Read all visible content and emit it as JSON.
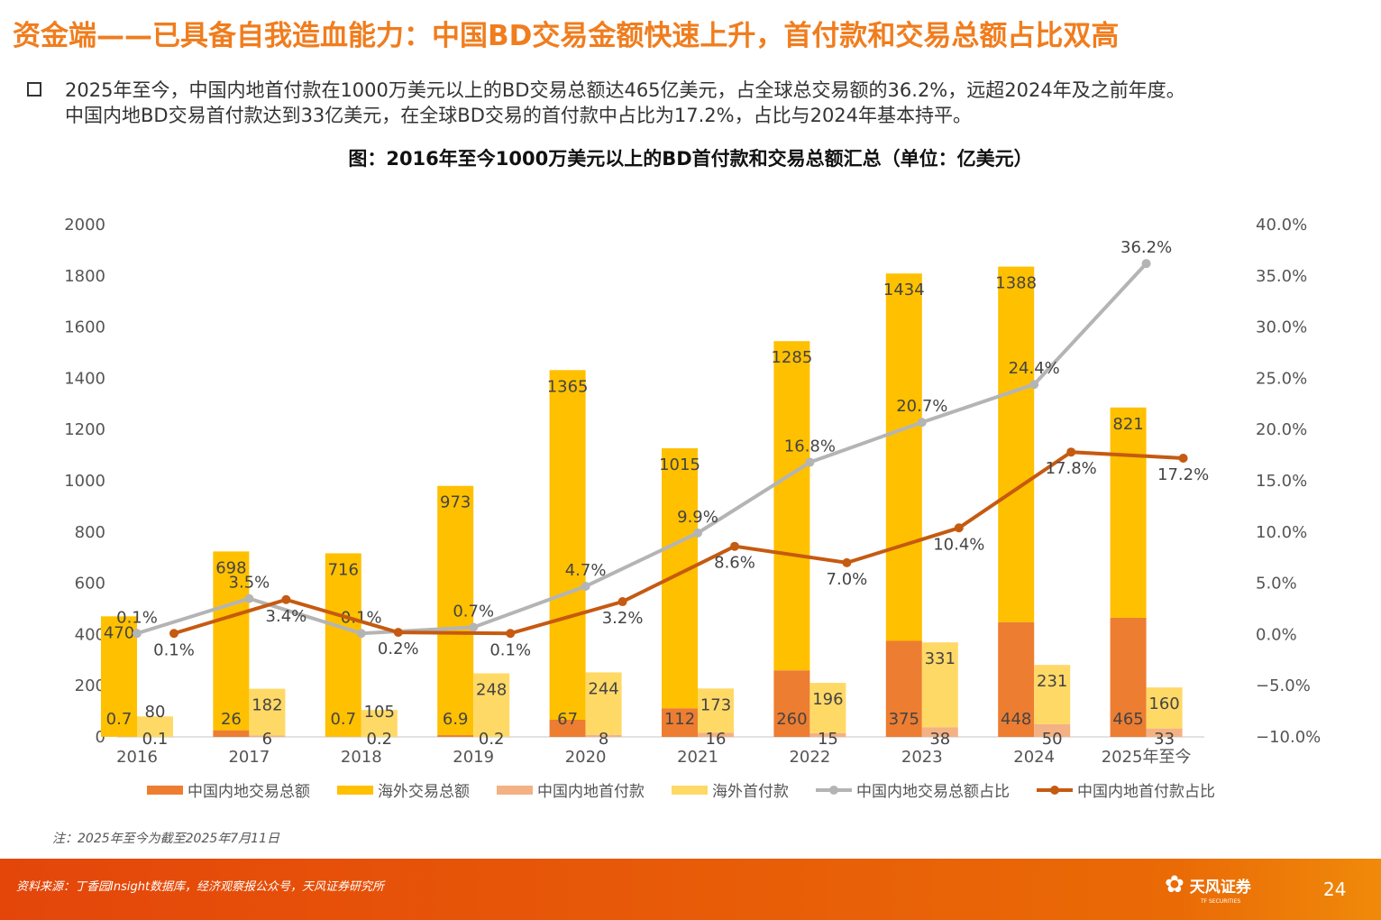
{
  "title": "资金端——已具备自我造血能力：中国BD交易金额快速上升，首付款和交易总额占比双高",
  "bullet_lines": [
    "2025年至今，中国内地首付款在1000万美元以上的BD交易总额达465亿美元，占全球总交易额的36.2%，远超2024年及之前年度。",
    "中国内地BD交易首付款达到33亿美元，在全球BD交易的首付款中占比为17.2%，占比与2024年基本持平。"
  ],
  "note": "注：2025年至今为截至2025年7月11日",
  "source": "资料来源：丁香园Insight数据库，经济观察报公众号，天风证券研究所",
  "logo": "天风证券",
  "logo_sub": "TF SECURITIES",
  "page_number": "24",
  "chart_data": {
    "type": "bar",
    "title": "图：2016年至今1000万美元以上的BD首付款和交易总额汇总（单位：亿美元）",
    "categories": [
      "2016",
      "2017",
      "2018",
      "2019",
      "2020",
      "2021",
      "2022",
      "2023",
      "2024",
      "2025年至今"
    ],
    "ylim": [
      0,
      2000
    ],
    "yticks": [
      "2000",
      "1800",
      "1600",
      "1400",
      "1200",
      "1000",
      "800",
      "600",
      "400",
      "200",
      "0"
    ],
    "y2lim": [
      -10,
      40
    ],
    "y2ticks": [
      "40.0%",
      "35.0%",
      "30.0%",
      "25.0%",
      "20.0%",
      "15.0%",
      "10.0%",
      "5.0%",
      "0.0%",
      "−5.0%",
      "−10.0%"
    ],
    "series": [
      {
        "name": "中国内地交易总额",
        "kind": "bar",
        "stack": "total",
        "color": "#ed7d31",
        "values": [
          0.7,
          26,
          0.7,
          6.9,
          67,
          112,
          260,
          375,
          448,
          465
        ]
      },
      {
        "name": "海外交易总额",
        "kind": "bar",
        "stack": "total",
        "color": "#ffc000",
        "values": [
          470,
          698,
          716,
          973,
          1365,
          1015,
          1285,
          1434,
          1388,
          821
        ]
      },
      {
        "name": "中国内地首付款",
        "kind": "bar",
        "stack": "upfront",
        "color": "#f4b183",
        "values": [
          0.1,
          6,
          0.2,
          0.2,
          8,
          16,
          15,
          38,
          50,
          33
        ]
      },
      {
        "name": "海外首付款",
        "kind": "bar",
        "stack": "upfront",
        "color": "#ffd966",
        "values": [
          80,
          182,
          105,
          248,
          244,
          173,
          196,
          331,
          231,
          160
        ]
      },
      {
        "name": "中国内地交易总额占比",
        "kind": "line",
        "axis": "right",
        "color": "#b4b4b4",
        "values": [
          0.1,
          3.5,
          0.1,
          0.7,
          4.7,
          9.9,
          16.8,
          20.7,
          24.4,
          36.2
        ]
      },
      {
        "name": "中国内地首付款占比",
        "kind": "line",
        "axis": "right",
        "color": "#c55a11",
        "values": [
          0.1,
          3.4,
          0.2,
          0.1,
          3.2,
          8.6,
          7.0,
          10.4,
          17.8,
          17.2
        ]
      }
    ],
    "legend": "bottom"
  }
}
